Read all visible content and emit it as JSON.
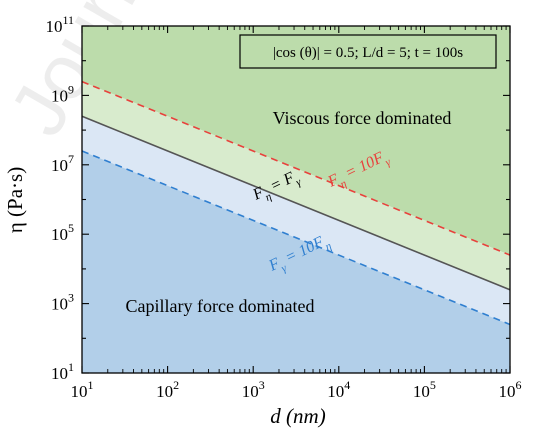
{
  "chart_data": {
    "type": "line",
    "x_scale": "log",
    "y_scale": "log",
    "xlabel": "d (nm)",
    "ylabel": "η (Pa·s)",
    "xlim": [
      10,
      1000000
    ],
    "ylim": [
      10,
      100000000000
    ],
    "x_ticks": [
      {
        "value": 10,
        "base": "10",
        "exp": "1"
      },
      {
        "value": 100,
        "base": "10",
        "exp": "2"
      },
      {
        "value": 1000,
        "base": "10",
        "exp": "3"
      },
      {
        "value": 10000,
        "base": "10",
        "exp": "4"
      },
      {
        "value": 100000,
        "base": "10",
        "exp": "5"
      },
      {
        "value": 1000000,
        "base": "10",
        "exp": "6"
      }
    ],
    "y_ticks": [
      {
        "value": 10,
        "base": "10",
        "exp": "1"
      },
      {
        "value": 1000,
        "base": "10",
        "exp": "3"
      },
      {
        "value": 100000,
        "base": "10",
        "exp": "5"
      },
      {
        "value": 10000000,
        "base": "10",
        "exp": "7"
      },
      {
        "value": 1000000000,
        "base": "10",
        "exp": "9"
      },
      {
        "value": 100000000000,
        "base": "10",
        "exp": "11"
      }
    ],
    "series": [
      {
        "name": "Fη = 10Fγ",
        "style": "dashed",
        "color": "#e8413c",
        "x": [
          10,
          1000000
        ],
        "y": [
          2500000000,
          25000
        ]
      },
      {
        "name": "Fη = Fγ",
        "style": "solid",
        "color": "#555555",
        "x": [
          10,
          1000000
        ],
        "y": [
          250000000,
          2500
        ]
      },
      {
        "name": "Fγ = 10Fη",
        "style": "dashed",
        "color": "#2f7fd0",
        "x": [
          10,
          1000000
        ],
        "y": [
          25000000,
          250
        ]
      }
    ],
    "regions": [
      {
        "name": "Viscous force dominated",
        "color": "#bcdcab"
      },
      {
        "name": "Capillary force dominated",
        "color": "#b2cfe9"
      }
    ],
    "band_colors": {
      "upper": "#d8ebcd",
      "lower": "#dbe7f5"
    },
    "info_box": "|cos (θ)| = 0.5; L/d = 5; t = 100s",
    "region_labels": {
      "viscous": "Viscous force dominated",
      "capillary": "Capillary force dominated"
    },
    "line_labels": {
      "upper": {
        "lhs": "F",
        "lhs_sub": "η",
        "rhs": "= 10F",
        "rhs_sub": "γ"
      },
      "middle": {
        "lhs": "F",
        "lhs_sub": "η",
        "rhs": "= F",
        "rhs_sub": "γ"
      },
      "lower": {
        "lhs": "F",
        "lhs_sub": "γ",
        "rhs": "= 10F",
        "rhs_sub": "η"
      }
    },
    "grid": false
  }
}
